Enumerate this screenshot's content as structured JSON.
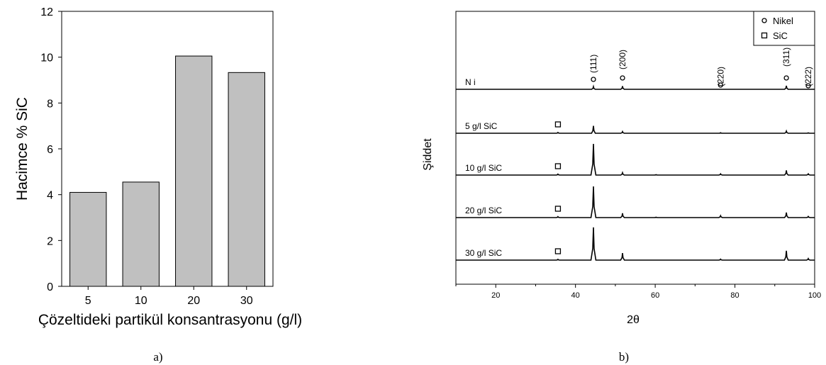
{
  "captions": {
    "left": "a)",
    "right": "b)"
  },
  "chart_data": [
    {
      "type": "bar",
      "categories": [
        "5",
        "10",
        "20",
        "30"
      ],
      "values": [
        4.1,
        4.55,
        10.05,
        9.33
      ],
      "ylim": [
        0,
        12
      ],
      "yticks": [
        "0",
        "2",
        "4",
        "6",
        "8",
        "10",
        "12"
      ],
      "xlabel": "Çözeltideki partikül konsantrasyonu (g/l)",
      "ylabel": "Hacimce % SiC",
      "bar_color": "#c0c0c0",
      "grid": false
    },
    {
      "type": "line",
      "xlabel": "2θ",
      "ylabel": "Şiddet",
      "xlim": [
        10,
        100
      ],
      "xticks": [
        "20",
        "40",
        "60",
        "80",
        "100"
      ],
      "legend": {
        "placement": "top-right",
        "entries": [
          {
            "symbol": "circle",
            "label": "Nikel"
          },
          {
            "symbol": "square",
            "label": "SiC"
          }
        ]
      },
      "peak_labels": [
        {
          "x": 44.5,
          "label": "(111)"
        },
        {
          "x": 51.8,
          "label": "(200)"
        },
        {
          "x": 76.4,
          "label": "(220)"
        },
        {
          "x": 92.9,
          "label": "(311)"
        },
        {
          "x": 98.4,
          "label": "(222)"
        }
      ],
      "series": [
        {
          "name": "N i",
          "sic_marker_x": null,
          "peaks": [
            [
              44.5,
              0.35
            ],
            [
              51.8,
              0.4
            ],
            [
              76.4,
              0.0
            ],
            [
              92.9,
              0.45
            ],
            [
              98.4,
              0.0
            ]
          ]
        },
        {
          "name": "5 g/l SiC",
          "sic_marker_x": 35.6,
          "peaks": [
            [
              35.6,
              0.1
            ],
            [
              44.5,
              0.95
            ],
            [
              51.8,
              0.22
            ],
            [
              76.4,
              0.06
            ],
            [
              92.9,
              0.28
            ],
            [
              98.4,
              0.05
            ]
          ]
        },
        {
          "name": "10 g/l SiC",
          "sic_marker_x": 35.6,
          "peaks": [
            [
              35.6,
              0.12
            ],
            [
              44.5,
              4.0
            ],
            [
              51.8,
              0.3
            ],
            [
              60.2,
              0.05
            ],
            [
              76.4,
              0.15
            ],
            [
              92.9,
              0.6
            ],
            [
              98.4,
              0.15
            ]
          ]
        },
        {
          "name": "20 g/l SiC",
          "sic_marker_x": 35.6,
          "peaks": [
            [
              35.6,
              0.12
            ],
            [
              44.5,
              4.0
            ],
            [
              51.8,
              0.55
            ],
            [
              60.2,
              0.05
            ],
            [
              76.4,
              0.25
            ],
            [
              92.9,
              0.65
            ],
            [
              98.4,
              0.15
            ]
          ]
        },
        {
          "name": "30 g/l SiC",
          "sic_marker_x": 35.6,
          "peaks": [
            [
              35.6,
              0.1
            ],
            [
              44.5,
              4.2
            ],
            [
              51.8,
              0.9
            ],
            [
              76.4,
              0.12
            ],
            [
              92.9,
              1.2
            ],
            [
              98.4,
              0.2
            ]
          ]
        }
      ]
    }
  ]
}
